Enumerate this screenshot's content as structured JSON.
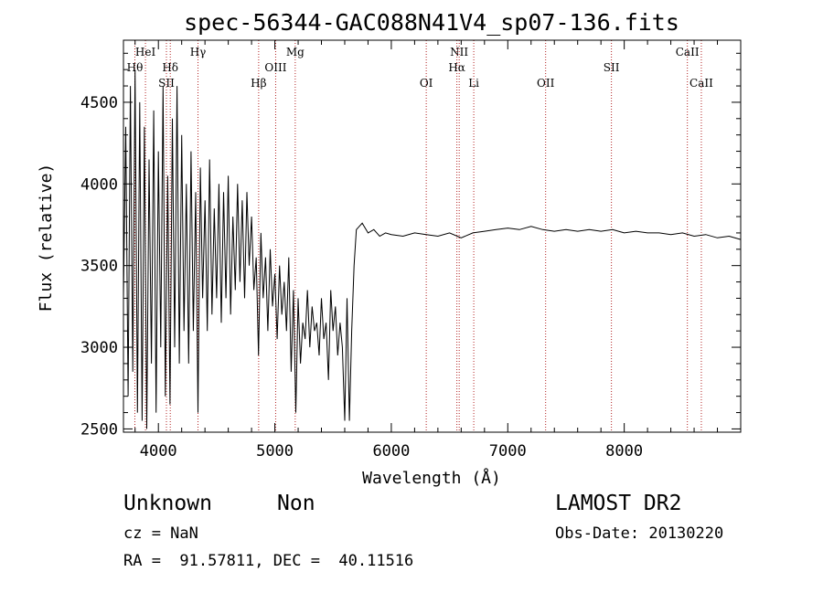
{
  "chart_data": {
    "type": "line",
    "title": "spec-56344-GAC088N41V4_sp07-136.fits",
    "xlabel": "Wavelength (Å)",
    "ylabel": "Flux (relative)",
    "xlim": [
      3700,
      9000
    ],
    "ylim": [
      2480,
      4880
    ],
    "xticks": [
      4000,
      5000,
      6000,
      7000,
      8000
    ],
    "yticks": [
      2500,
      3000,
      3500,
      4000,
      4500
    ],
    "grid": false,
    "line_color": "#000000",
    "marker_color": "#b22222",
    "spectral_lines": [
      {
        "label": "Hθ",
        "x": 3798,
        "row": 2
      },
      {
        "label": "HeI",
        "x": 3889,
        "row": 1
      },
      {
        "label": "Hδ",
        "x": 4102,
        "row": 2
      },
      {
        "label": "SII",
        "x": 4069,
        "row": 3
      },
      {
        "label": "Hγ",
        "x": 4340,
        "row": 1
      },
      {
        "label": "Hβ",
        "x": 4861,
        "row": 3
      },
      {
        "label": "OIII",
        "x": 5007,
        "row": 2
      },
      {
        "label": "Mg",
        "x": 5175,
        "row": 1
      },
      {
        "label": "OI",
        "x": 6300,
        "row": 3
      },
      {
        "label": "NII",
        "x": 6583,
        "row": 1
      },
      {
        "label": "Hα",
        "x": 6563,
        "row": 2
      },
      {
        "label": "Li",
        "x": 6708,
        "row": 3
      },
      {
        "label": "OII",
        "x": 7325,
        "row": 3
      },
      {
        "label": "SII",
        "x": 7890,
        "row": 2
      },
      {
        "label": "CaII",
        "x": 8542,
        "row": 1
      },
      {
        "label": "CaII",
        "x": 8662,
        "row": 3
      }
    ],
    "series": [
      {
        "x": [
          3700,
          3720,
          3740,
          3760,
          3780,
          3800,
          3820,
          3840,
          3860,
          3880,
          3900,
          3920,
          3940,
          3960,
          3980,
          4000,
          4020,
          4040,
          4060,
          4080,
          4100,
          4120,
          4140,
          4160,
          4180,
          4200,
          4220,
          4240,
          4260,
          4280,
          4300,
          4320,
          4340,
          4360,
          4380,
          4400,
          4420,
          4440,
          4460,
          4480,
          4500,
          4520,
          4540,
          4560,
          4580,
          4600,
          4620,
          4640,
          4660,
          4680,
          4700,
          4720,
          4740,
          4760,
          4780,
          4800,
          4820,
          4840,
          4860,
          4880,
          4900,
          4920,
          4940,
          4960,
          4980,
          5000,
          5020,
          5040,
          5060,
          5080,
          5100,
          5120,
          5140,
          5160,
          5180,
          5200,
          5220,
          5240,
          5260,
          5280,
          5300,
          5320,
          5340,
          5360,
          5380,
          5400,
          5420,
          5440,
          5460,
          5480,
          5500,
          5520,
          5540,
          5560,
          5580,
          5600,
          5620,
          5640,
          5660,
          5680,
          5700,
          5750,
          5800,
          5850,
          5900,
          5950,
          6000,
          6100,
          6200,
          6300,
          6400,
          6500,
          6600,
          6700,
          6800,
          6900,
          7000,
          7100,
          7200,
          7300,
          7400,
          7500,
          7600,
          7700,
          7800,
          7900,
          8000,
          8100,
          8200,
          8300,
          8400,
          8500,
          8600,
          8700,
          8800,
          8900,
          9000
        ],
        "y": [
          3300,
          4350,
          2700,
          4600,
          2850,
          4700,
          2600,
          4500,
          2550,
          4350,
          2500,
          4150,
          2900,
          4450,
          2600,
          4200,
          3000,
          4600,
          2700,
          4050,
          2650,
          4400,
          3000,
          4600,
          2900,
          4300,
          3100,
          4000,
          2900,
          4200,
          3100,
          3950,
          2600,
          4100,
          3300,
          3900,
          3100,
          4150,
          3200,
          3850,
          3300,
          4000,
          3150,
          3950,
          3300,
          4050,
          3200,
          3800,
          3350,
          4000,
          3400,
          3900,
          3300,
          3950,
          3500,
          3800,
          3350,
          3550,
          2950,
          3700,
          3300,
          3550,
          3100,
          3600,
          3250,
          3450,
          3050,
          3500,
          3200,
          3400,
          3100,
          3550,
          2850,
          3350,
          2600,
          3300,
          2900,
          3150,
          3050,
          3350,
          3000,
          3250,
          3100,
          3150,
          2950,
          3300,
          3050,
          3150,
          2800,
          3350,
          3100,
          3250,
          2950,
          3150,
          3000,
          2550,
          3300,
          2550,
          3100,
          3500,
          3720,
          3760,
          3700,
          3720,
          3680,
          3700,
          3690,
          3680,
          3700,
          3690,
          3680,
          3700,
          3670,
          3700,
          3710,
          3720,
          3730,
          3720,
          3740,
          3720,
          3710,
          3720,
          3710,
          3720,
          3710,
          3720,
          3700,
          3710,
          3700,
          3700,
          3690,
          3700,
          3680,
          3690,
          3670,
          3680,
          3660
        ]
      }
    ]
  },
  "footer": {
    "object_class": "Unknown",
    "object_subclass": "Non",
    "survey": "LAMOST DR2",
    "redshift": "cz = NaN",
    "obs_date": "Obs-Date: 20130220",
    "coordinates": "RA =  91.57811, DEC =  40.11516"
  }
}
